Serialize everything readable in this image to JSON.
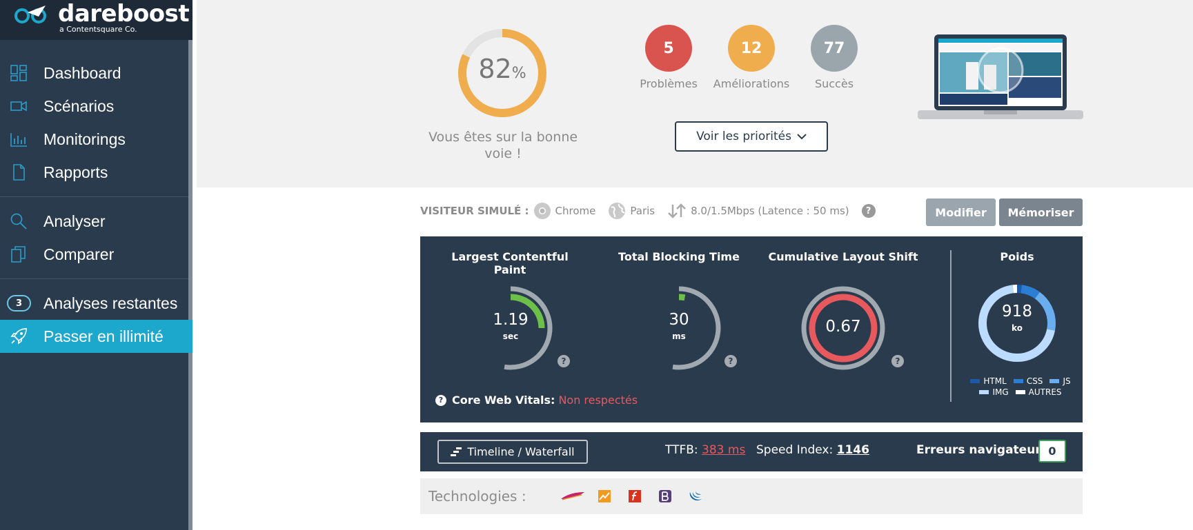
{
  "brand": {
    "name": "dareboost",
    "tagline": "a Contentsquare Co."
  },
  "sidebar": {
    "items": [
      {
        "label": "Dashboard",
        "icon": "dashboard-icon"
      },
      {
        "label": "Scénarios",
        "icon": "camera-icon"
      },
      {
        "label": "Monitorings",
        "icon": "bar-chart-icon"
      },
      {
        "label": "Rapports",
        "icon": "document-icon"
      },
      {
        "label": "Analyser",
        "icon": "search-icon"
      },
      {
        "label": "Comparer",
        "icon": "copy-icon"
      },
      {
        "label": "Analyses restantes",
        "badge": "3"
      },
      {
        "label": "Passer en illimité",
        "icon": "rocket-icon",
        "active": true
      }
    ]
  },
  "score": {
    "value": "82",
    "unit": "%",
    "value_fraction": 0.82,
    "message": "Vous êtes sur la bonne voie !",
    "color": "#f0ad4e"
  },
  "stats": [
    {
      "value": "5",
      "label": "Problèmes",
      "color": "#d9534f"
    },
    {
      "value": "12",
      "label": "Améliorations",
      "color": "#f0ad4e"
    },
    {
      "value": "77",
      "label": "Succès",
      "color": "#9aa5ac"
    }
  ],
  "priorities_button": "Voir les priorités",
  "visitor": {
    "label": "VISITEUR SIMULÉ :",
    "browser": "Chrome",
    "location": "Paris",
    "connection": "8.0/1.5Mbps (Latence : 50 ms)",
    "help": "?"
  },
  "buttons": {
    "modify": "Modifier",
    "memorize": "Mémoriser"
  },
  "metrics": {
    "lcp": {
      "title": "Largest Contentful Paint",
      "value": "1.19",
      "unit": "sec",
      "fraction": 0.25,
      "color": "#6cc04a"
    },
    "tbt": {
      "title": "Total Blocking Time",
      "value": "30",
      "unit": "ms",
      "fraction": 0.03,
      "color": "#6cc04a"
    },
    "cls": {
      "title": "Cumulative Layout Shift",
      "value": "0.67",
      "fraction": 1.0,
      "color": "#e8595e"
    },
    "weight": {
      "title": "Poids",
      "value": "918",
      "unit": "ko",
      "legend": [
        {
          "label": "HTML",
          "color": "#1c5aa8",
          "share": 0.02
        },
        {
          "label": "CSS",
          "color": "#2a7fd4",
          "share": 0.08
        },
        {
          "label": "JS",
          "color": "#6aaef0",
          "share": 0.18
        },
        {
          "label": "IMG",
          "color": "#bcdcff",
          "share": 0.7
        },
        {
          "label": "AUTRES",
          "color": "#ffffff",
          "share": 0.02
        }
      ]
    },
    "help": "?"
  },
  "core_web_vitals": {
    "label": "Core Web Vitals:",
    "status": "Non respectés"
  },
  "bottom": {
    "timeline": "Timeline / Waterfall",
    "ttfb_label": "TTFB:",
    "ttfb_value": "383 ms",
    "si_label": "Speed Index:",
    "si_value": "1146",
    "errors_label": "Erreurs navigateur",
    "errors_value": "0"
  },
  "technologies": {
    "label": "Technologies :",
    "icons": [
      "apache-icon",
      "analytics-icon",
      "font-icon",
      "bootstrap-icon",
      "jquery-icon"
    ]
  }
}
